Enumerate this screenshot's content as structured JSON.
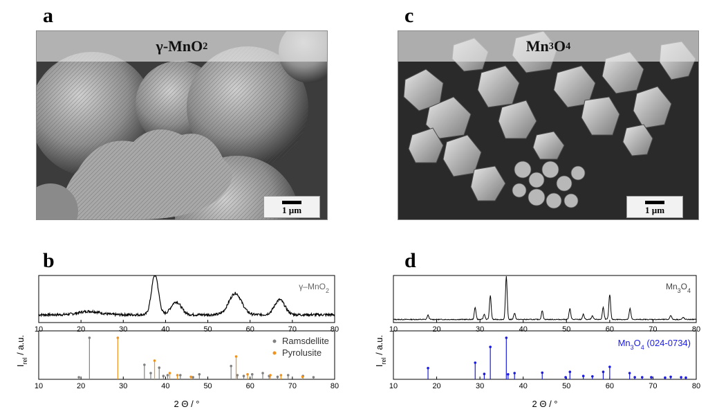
{
  "panels": {
    "a": {
      "letter": "a",
      "title": "γ-MnO",
      "title_sub": "2",
      "scale_label": "1 µm"
    },
    "c": {
      "letter": "c",
      "title": "Mn",
      "title_sub1": "3",
      "title_mid": "O",
      "title_sub2": "4",
      "scale_label": "1 µm"
    },
    "b": {
      "letter": "b"
    },
    "d": {
      "letter": "d"
    }
  },
  "chart_data": [
    {
      "id": "b",
      "type": "line",
      "xlabel": "2 Θ / °",
      "ylabel": "I_rel / a.u.",
      "xlim": [
        10,
        80
      ],
      "xticks": [
        10,
        20,
        30,
        40,
        50,
        60,
        70,
        80
      ],
      "top_series": {
        "name": "γ–MnO2",
        "color": "#000000",
        "peaks": [
          [
            22,
            0.08,
            2.5
          ],
          [
            37.5,
            0.95,
            0.8
          ],
          [
            42.5,
            0.3,
            1.2
          ],
          [
            56.5,
            0.5,
            1.5
          ],
          [
            67,
            0.35,
            1.2
          ]
        ],
        "baseline": 0.15
      },
      "bottom_series": [
        {
          "name": "Ramsdellite",
          "color": "#808080",
          "sticks": [
            [
              19.5,
              0.05
            ],
            [
              22,
              1.0
            ],
            [
              35,
              0.35
            ],
            [
              36.5,
              0.15
            ],
            [
              38.5,
              0.28
            ],
            [
              39.5,
              0.08
            ],
            [
              40.5,
              0.1
            ],
            [
              43.5,
              0.1
            ],
            [
              46.5,
              0.05
            ],
            [
              48,
              0.12
            ],
            [
              55.5,
              0.32
            ],
            [
              57,
              0.1
            ],
            [
              58.5,
              0.08
            ],
            [
              60.5,
              0.12
            ],
            [
              63,
              0.15
            ],
            [
              64.5,
              0.08
            ],
            [
              66.5,
              0.06
            ],
            [
              69,
              0.1
            ],
            [
              72.5,
              0.08
            ],
            [
              75,
              0.05
            ]
          ]
        },
        {
          "name": "Pyrolusite",
          "color": "#f0921e",
          "sticks": [
            [
              28.7,
              1.0
            ],
            [
              37.4,
              0.45
            ],
            [
              41,
              0.15
            ],
            [
              42.8,
              0.1
            ],
            [
              46,
              0.06
            ],
            [
              56.7,
              0.55
            ],
            [
              59.4,
              0.12
            ],
            [
              64.8,
              0.1
            ],
            [
              67.3,
              0.1
            ],
            [
              72.4,
              0.06
            ]
          ]
        }
      ]
    },
    {
      "id": "d",
      "type": "line",
      "xlabel": "2 Θ / °",
      "ylabel": "I_rel / a.u.",
      "xlim": [
        10,
        80
      ],
      "xticks": [
        10,
        20,
        30,
        40,
        50,
        60,
        70,
        80
      ],
      "top_series": {
        "name": "Mn3O4",
        "color": "#000000",
        "peaks": [
          [
            18,
            0.1,
            0.2
          ],
          [
            28.9,
            0.28,
            0.2
          ],
          [
            31,
            0.12,
            0.2
          ],
          [
            32.4,
            0.55,
            0.2
          ],
          [
            36.1,
            1.0,
            0.2
          ],
          [
            38,
            0.15,
            0.2
          ],
          [
            44.4,
            0.2,
            0.2
          ],
          [
            50.8,
            0.25,
            0.2
          ],
          [
            53.9,
            0.12,
            0.2
          ],
          [
            56,
            0.08,
            0.2
          ],
          [
            58.5,
            0.28,
            0.2
          ],
          [
            60,
            0.58,
            0.2
          ],
          [
            64.7,
            0.25,
            0.2
          ],
          [
            74.1,
            0.1,
            0.2
          ],
          [
            77,
            0.05,
            0.2
          ]
        ],
        "baseline": 0.04
      },
      "bottom_series": [
        {
          "name": "Mn3O4 (024-0734)",
          "color": "#1a1ae0",
          "sticks": [
            [
              18,
              0.27
            ],
            [
              28.9,
              0.4
            ],
            [
              31,
              0.13
            ],
            [
              32.4,
              0.78
            ],
            [
              36.1,
              1.0
            ],
            [
              36.5,
              0.12
            ],
            [
              38,
              0.15
            ],
            [
              44.4,
              0.16
            ],
            [
              49.8,
              0.05
            ],
            [
              50.8,
              0.18
            ],
            [
              53.9,
              0.08
            ],
            [
              56,
              0.07
            ],
            [
              58.5,
              0.18
            ],
            [
              60,
              0.3
            ],
            [
              64.6,
              0.15
            ],
            [
              65.8,
              0.05
            ],
            [
              67.5,
              0.05
            ],
            [
              69.6,
              0.05
            ],
            [
              72.8,
              0.04
            ],
            [
              74.1,
              0.06
            ],
            [
              76.5,
              0.05
            ],
            [
              77.6,
              0.04
            ]
          ]
        }
      ]
    }
  ],
  "labels": {
    "b_top": "γ–MnO",
    "b_top_sub": "2",
    "b_leg1": "Ramsdellite",
    "b_leg2": "Pyrolusite",
    "d_top": "Mn",
    "d_top_sub1": "3",
    "d_top_mid": "O",
    "d_top_sub2": "4",
    "d_ref": "Mn",
    "d_ref_sub1": "3",
    "d_ref_mid": "O",
    "d_ref_sub2": "4",
    "d_ref_tail": " (024-0734)",
    "ylabel_main": "I",
    "ylabel_sub": "rel",
    "ylabel_tail": " / a.u.",
    "xlabel": "2 Θ / °"
  }
}
